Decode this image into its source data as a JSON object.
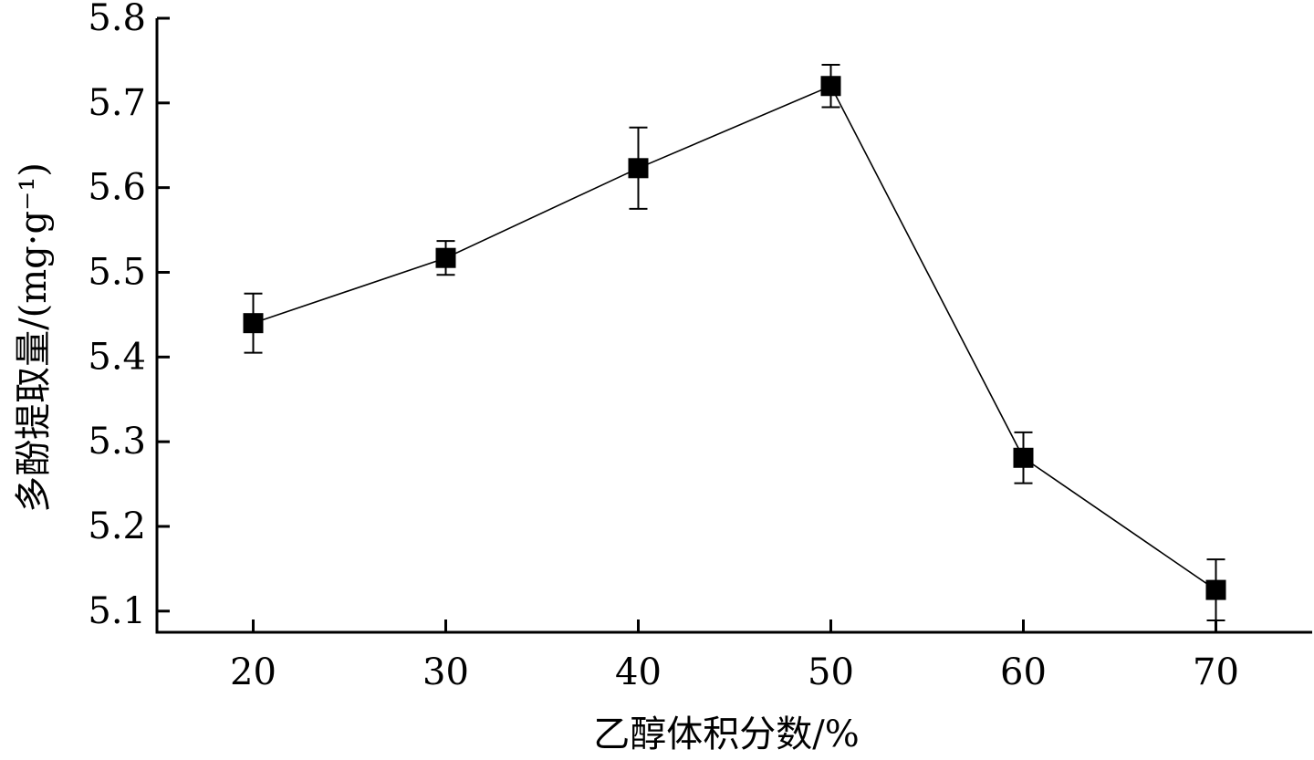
{
  "chart_data": {
    "type": "line",
    "xlabel": "乙醇体积分数/%",
    "ylabel": "多酚提取量/(mg·g⁻¹)",
    "x_ticks": [
      "20",
      "30",
      "40",
      "50",
      "60",
      "70"
    ],
    "y_ticks": [
      "5.1",
      "5.2",
      "5.3",
      "5.4",
      "5.5",
      "5.6",
      "5.7",
      "5.8"
    ],
    "xlim": [
      15,
      75
    ],
    "ylim": [
      5.075,
      5.8
    ],
    "series": [
      {
        "x": [
          20,
          30,
          40,
          50,
          60,
          70
        ],
        "y": [
          5.44,
          5.517,
          5.623,
          5.72,
          5.281,
          5.125
        ],
        "error": [
          0.035,
          0.02,
          0.048,
          0.025,
          0.03,
          0.036
        ]
      }
    ],
    "marker": "square",
    "grid": false
  }
}
